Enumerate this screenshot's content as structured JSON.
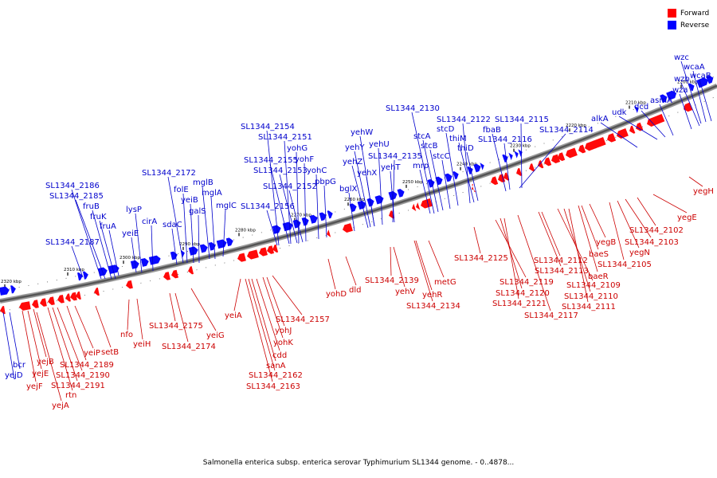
{
  "legend": {
    "forward_label": "Forward",
    "reverse_label": "Reverse",
    "forward_color": "#ff0000",
    "reverse_color": "#0000ff"
  },
  "caption": "Salmonella enterica subsp. enterica serovar Typhimurium SL1344 genome. - 0..4878...",
  "scale_ticks": [
    "2320 kbp",
    "2310 kbp",
    "2300 kbp",
    "2290 kbp",
    "2280 kbp",
    "2270 kbp",
    "2260 kbp",
    "2250 kbp",
    "2240 kbp",
    "2230 kbp",
    "2220 kbp",
    "2210 kbp",
    "2200 kbp"
  ],
  "reverse_labels": [
    "bcr",
    "yejD",
    "SL1344_2187",
    "SL1344_2186",
    "SL1344_2185",
    "fruB",
    "fruK",
    "fruA",
    "yeiE",
    "lysP",
    "cirA",
    "sdaC",
    "SL1344_2172",
    "folE",
    "yeiB",
    "galS",
    "mglB",
    "mglA",
    "mglC",
    "SL1344_2154",
    "SL1344_2151",
    "yohG",
    "SL1344_2155",
    "yohF",
    "SL1344_2153",
    "yohC",
    "SL1344_2152",
    "pbpG",
    "SL1344_2156",
    "bglX",
    "yehW",
    "yehY",
    "yehU",
    "yehZ",
    "yehX",
    "SL1344_2135",
    "yehT",
    "SL1344_2130",
    "stcA",
    "stcB",
    "mrp",
    "stcC",
    "stcD",
    "SL1344_2122",
    "thiM",
    "thiD",
    "fbaB",
    "SL1344_2115",
    "SL1344_2116",
    "SL1344_2114",
    "alkA",
    "udk",
    "dcd",
    "asmA",
    "wza",
    "wzb",
    "wzc",
    "wcaA",
    "wcaB"
  ],
  "forward_labels": [
    "yejA",
    "yejF",
    "yejE",
    "yejB",
    "rtn",
    "SL1344_2191",
    "SL1344_2190",
    "SL1344_2189",
    "yeiP",
    "setB",
    "nfo",
    "yeiH",
    "SL1344_2175",
    "SL1344_2174",
    "yeiG",
    "yeiA",
    "SL1344_2157",
    "yohJ",
    "yohK",
    "cdd",
    "sanA",
    "SL1344_2162",
    "SL1344_2163",
    "yohD",
    "dld",
    "SL1344_2139",
    "yehV",
    "yehR",
    "SL1344_2134",
    "metG",
    "SL1344_2125",
    "SL1344_2112",
    "SL1344_2113",
    "SL1344_2119",
    "SL1344_2120",
    "SL1344_2121",
    "SL1344_2117",
    "baeS",
    "baeR",
    "yegB",
    "SL1344_2109",
    "SL1344_2110",
    "SL1344_2111",
    "yegN",
    "SL1344_2105",
    "SL1344_2103",
    "SL1344_2102",
    "yegE",
    "yegH"
  ]
}
